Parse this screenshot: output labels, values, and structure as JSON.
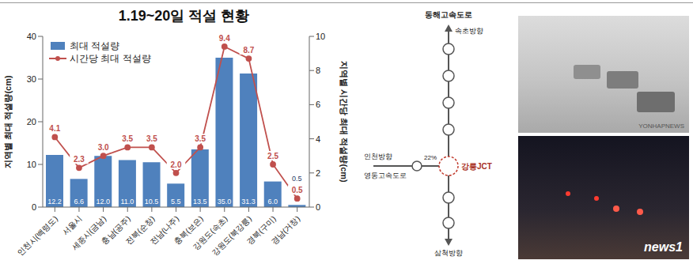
{
  "chart_data": {
    "type": "bar",
    "title": "1.19~20일 적설 현황",
    "categories": [
      "인천시(백령도)",
      "서울시",
      "세종시(금남)",
      "충남(공주)",
      "전북(순창)",
      "전남(나주)",
      "충북(보은)",
      "강원도(속초)",
      "강원도(북강릉)",
      "경북(구미)",
      "경남(거창)"
    ],
    "series": [
      {
        "name": "최대 적설량",
        "type": "bar",
        "color": "#4f81bd",
        "values": [
          12.2,
          6.6,
          12.0,
          11.0,
          10.5,
          5.5,
          13.5,
          35.0,
          31.3,
          6.0,
          0.5
        ],
        "value_labels": [
          "12.2",
          "6.6",
          "12.0",
          "11.0",
          "10.5",
          "5.5",
          "13.5",
          "35.0",
          "31.3",
          "6.0",
          "0.5"
        ]
      },
      {
        "name": "시간당 최대 적설량",
        "type": "line",
        "axis": "y2",
        "color": "#c0504d",
        "marker": "circle",
        "values": [
          4.1,
          2.3,
          3.0,
          3.5,
          3.5,
          2.0,
          3.5,
          9.4,
          8.7,
          2.5,
          0.5
        ],
        "value_labels": [
          "4.1",
          "2.3",
          "3.0",
          "3.5",
          "3.5",
          "2.0",
          "3.5",
          "9.4",
          "8.7",
          "2.5",
          "0.5"
        ]
      }
    ],
    "y_label": "지역별 최대 적설량(cm)",
    "y2_label": "지역별 시간당 최대 적설량(cm)",
    "ylim": [
      0,
      40
    ],
    "yticks": [
      0,
      10,
      20,
      30,
      40
    ],
    "y2lim": [
      0,
      10
    ],
    "y2ticks": [
      0,
      2,
      4,
      6,
      8,
      10
    ],
    "grid": false,
    "legend": "upper left",
    "data_labels": true
  },
  "diagram": {
    "road": "동해고속도로",
    "north": "속초방향",
    "south": "삼척방향",
    "west": "인천방향",
    "branch": "영동고속도로",
    "junction": "강릉JCT",
    "share": "22%"
  },
  "photos": [
    {
      "watermark": "YONHAPNEWS"
    },
    {
      "watermark": "news1"
    }
  ]
}
